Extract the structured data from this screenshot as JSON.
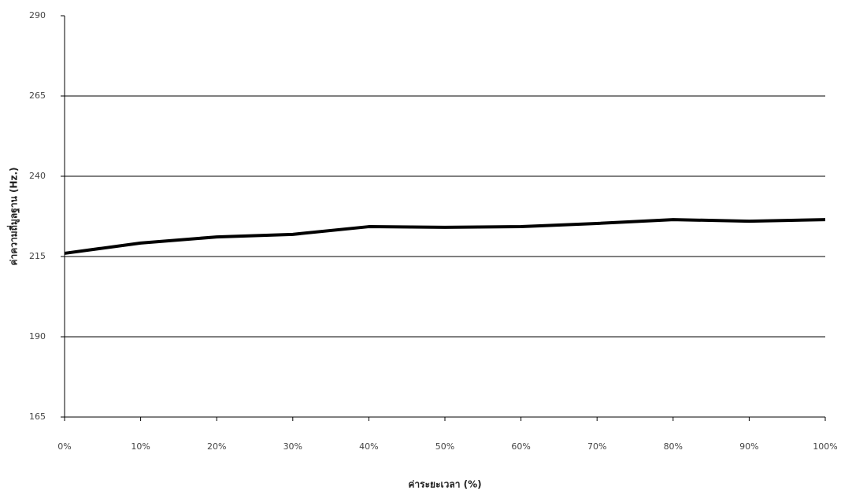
{
  "chart_data": {
    "type": "line",
    "x_label": "ค่าระยะเวลา (%)",
    "y_label": "ค่าความถี่มูลฐาน (Hz.)",
    "categories": [
      "0%",
      "10%",
      "20%",
      "30%",
      "40%",
      "50%",
      "60%",
      "70%",
      "80%",
      "90%",
      "100%"
    ],
    "series": [
      {
        "color": "#000000",
        "values": [
          216.0,
          219.2,
          221.1,
          221.9,
          224.3,
          224.1,
          224.3,
          225.3,
          226.5,
          226.0,
          226.5
        ]
      }
    ],
    "ylim": [
      165,
      290
    ],
    "yticks": [
      165,
      190,
      215,
      240,
      265,
      290
    ],
    "grid": true
  }
}
